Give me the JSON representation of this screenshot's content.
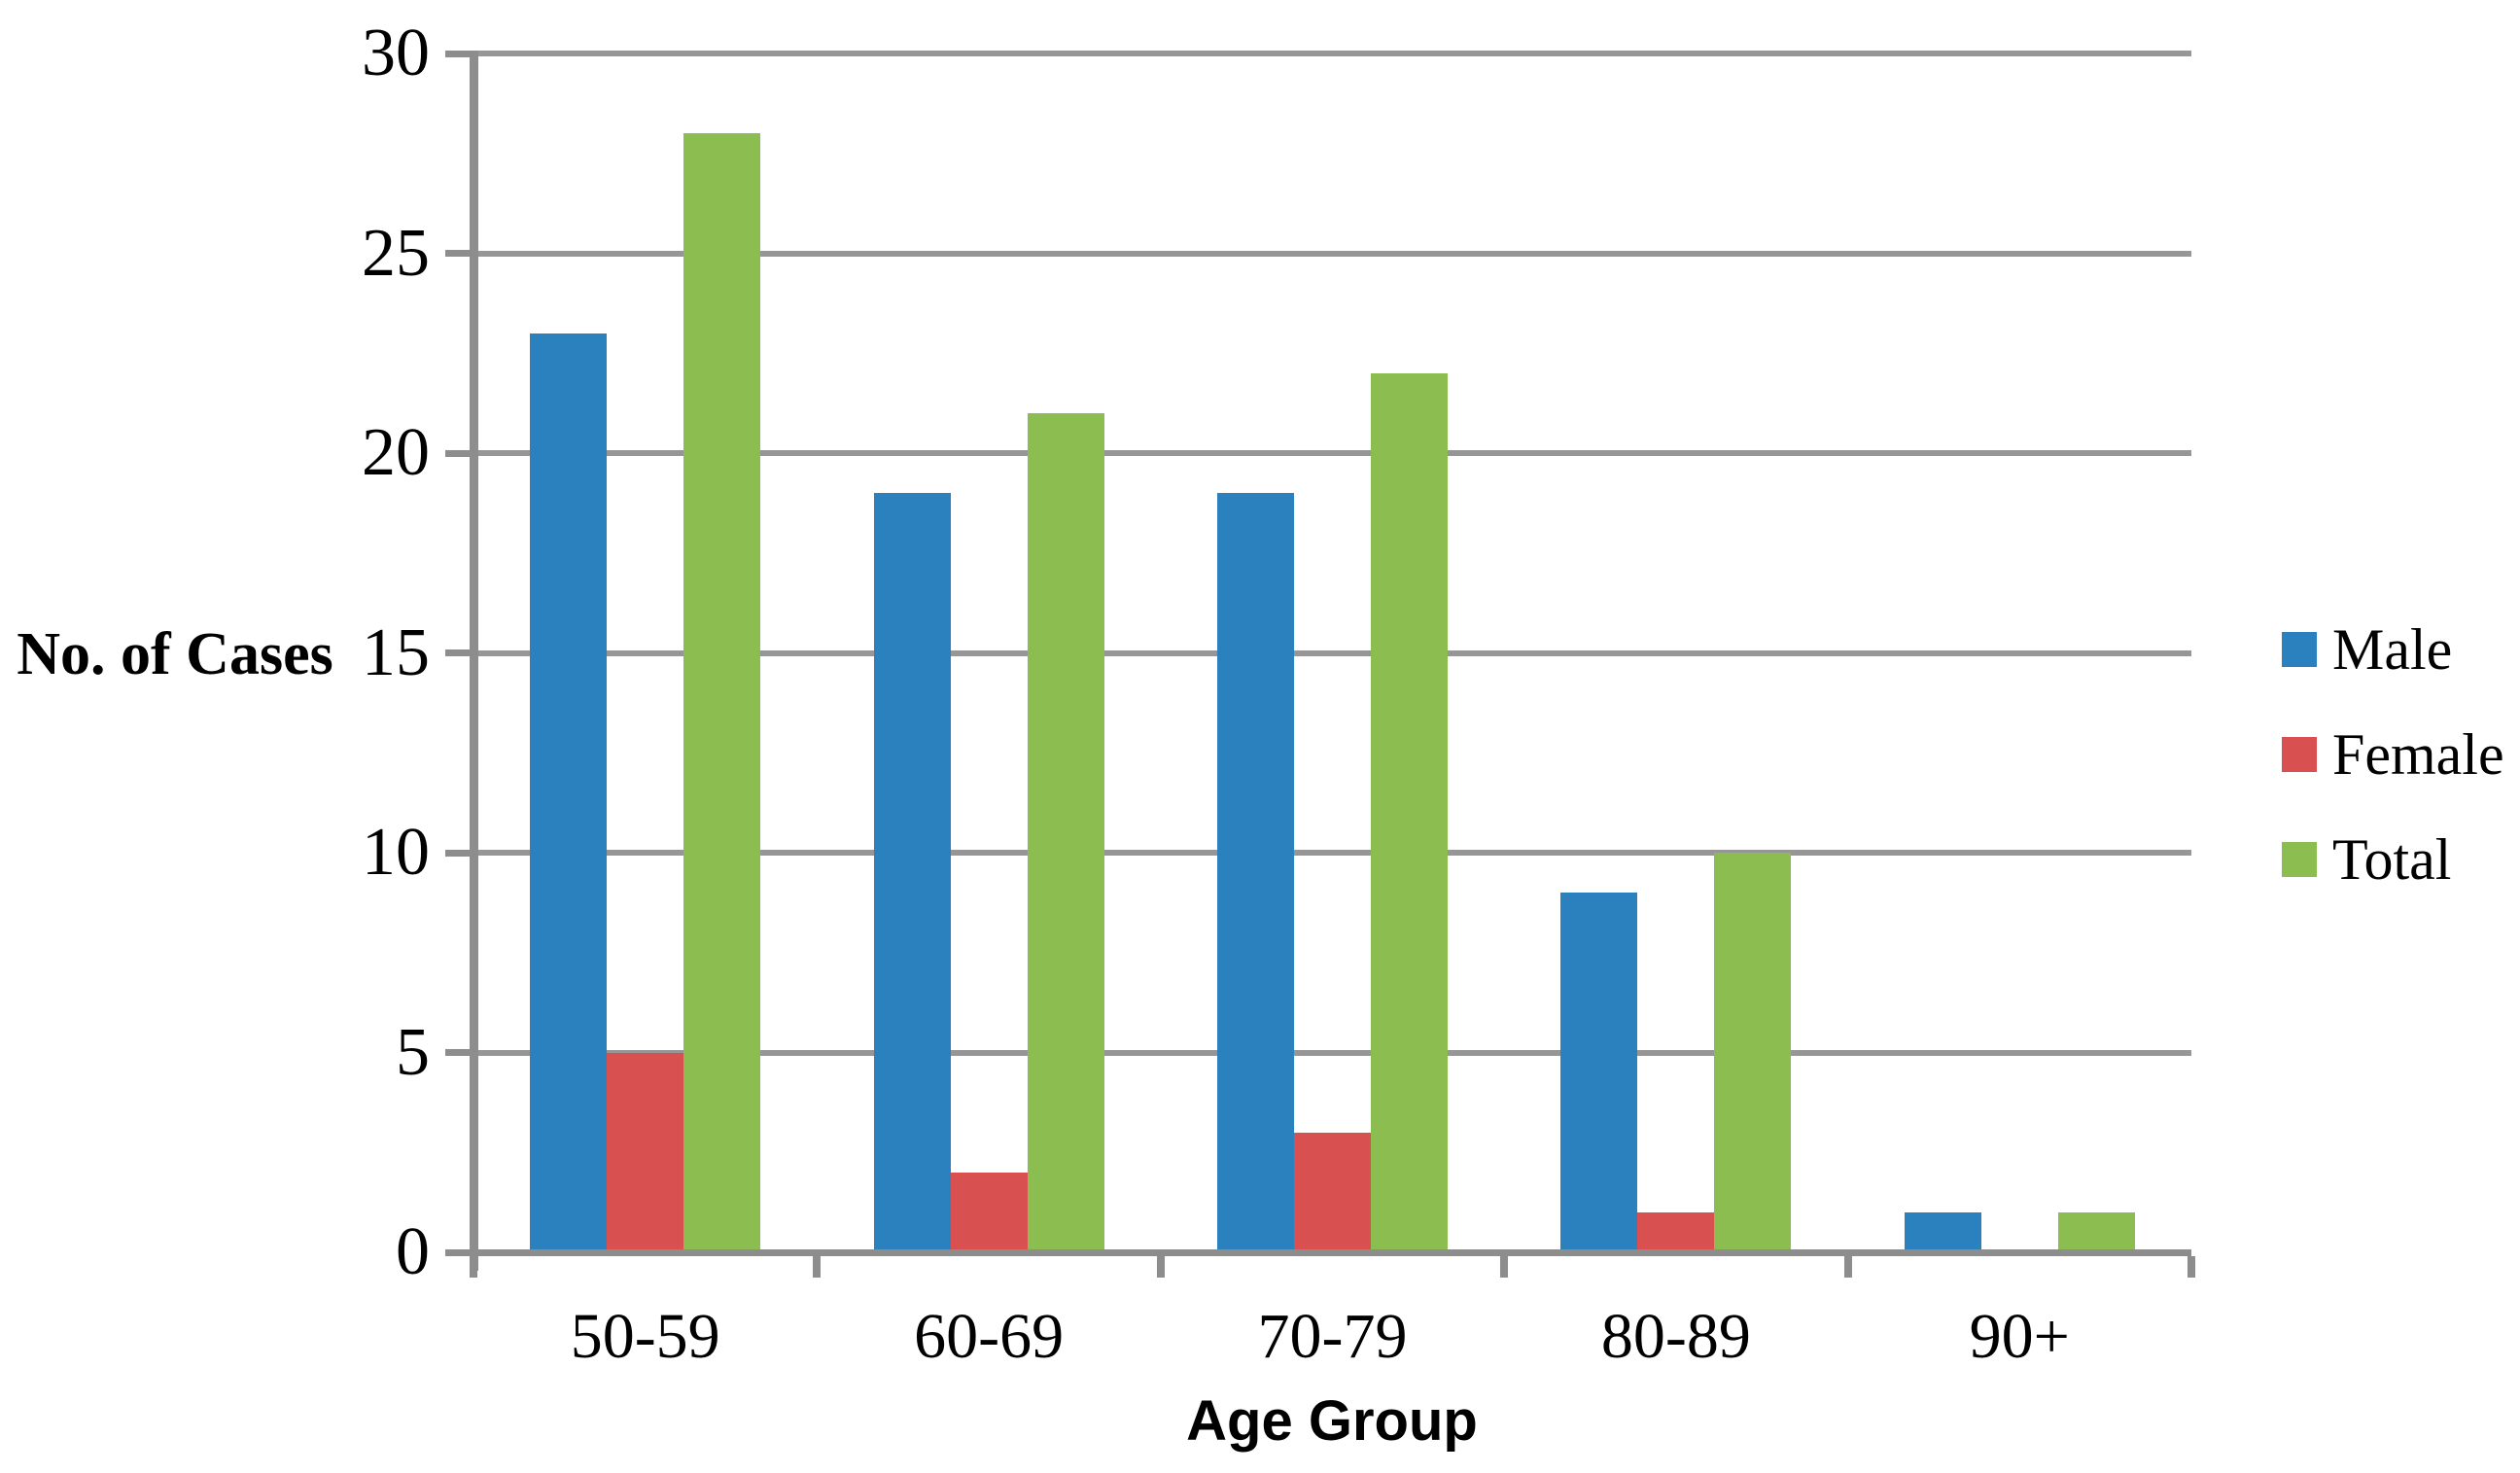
{
  "chart_data": {
    "type": "bar",
    "title": "",
    "categories": [
      "50-59",
      "60-69",
      "70-79",
      "80-89",
      "90+"
    ],
    "series": [
      {
        "name": "Male",
        "color": "#2A81BD",
        "values": [
          23,
          19,
          19,
          9,
          1
        ]
      },
      {
        "name": "Female",
        "color": "#D8504F",
        "values": [
          5,
          2,
          3,
          1,
          0
        ]
      },
      {
        "name": "Total",
        "color": "#8CBD51",
        "values": [
          28,
          21,
          22,
          10,
          1
        ]
      }
    ],
    "xlabel": "Age Group",
    "ylabel": "No. of Cases",
    "ylim": [
      0,
      30
    ],
    "ytick_step": 5,
    "yticks": [
      0,
      5,
      10,
      15,
      20,
      25,
      30
    ],
    "grid": "horizontal",
    "legend_position": "right",
    "legend_items": [
      "Male",
      "Female",
      "Total"
    ],
    "colors": {
      "axis": "#8D8D8D",
      "gridline": "#969696",
      "text": "#000000",
      "background": "#FFFFFF"
    }
  }
}
